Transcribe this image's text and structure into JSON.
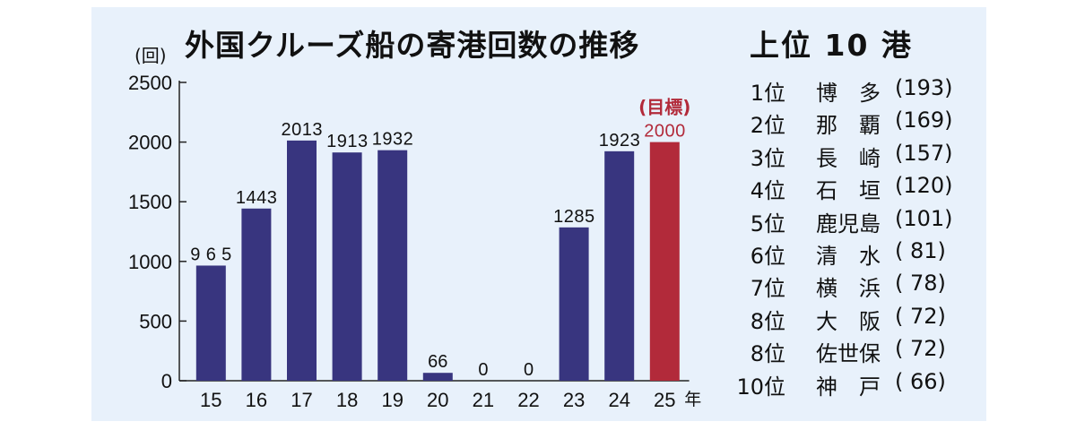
{
  "chart_data": {
    "type": "bar",
    "title": "外国クルーズ船の寄港回数の推移",
    "ylabel": "(回)",
    "xunit": "年",
    "categories": [
      "15",
      "16",
      "17",
      "18",
      "19",
      "20",
      "21",
      "22",
      "23",
      "24",
      "25"
    ],
    "values": [
      965,
      1443,
      2013,
      1913,
      1932,
      66,
      0,
      0,
      1285,
      1923,
      2000
    ],
    "ylim": [
      0,
      2500
    ],
    "yticks": [
      "0",
      "500",
      "1000",
      "1500",
      "2000",
      "2500"
    ],
    "bar_color": "#38357f",
    "target_color": "#b22a3a",
    "target_index": 10,
    "target_label": "(目標)",
    "grid": false
  },
  "ranking": {
    "title": "上位 10 港",
    "items": [
      {
        "rank": "1位",
        "port": "博　多",
        "count": "(193)"
      },
      {
        "rank": "2位",
        "port": "那　覇",
        "count": "(169)"
      },
      {
        "rank": "3位",
        "port": "長　崎",
        "count": "(157)"
      },
      {
        "rank": "4位",
        "port": "石　垣",
        "count": "(120)"
      },
      {
        "rank": "5位",
        "port": "鹿児島",
        "count": "(101)"
      },
      {
        "rank": "6位",
        "port": "清　水",
        "count": "(  81)"
      },
      {
        "rank": "7位",
        "port": "横　浜",
        "count": "(  78)"
      },
      {
        "rank": "8位",
        "port": "大　阪",
        "count": "(  72)"
      },
      {
        "rank": "8位",
        "port": "佐世保",
        "count": "(  72)"
      },
      {
        "rank": "10位",
        "port": "神　戸",
        "count": "(  66)"
      }
    ]
  }
}
